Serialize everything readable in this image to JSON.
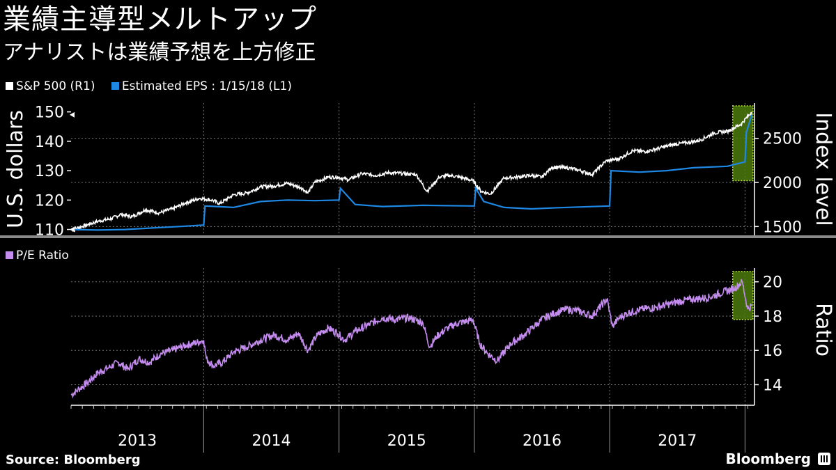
{
  "header": {
    "title": "業績主導型メルトアップ",
    "subtitle": "アナリストは業績予想を上方修正"
  },
  "footer": {
    "source": "Source: Bloomberg",
    "brand": "Bloomberg"
  },
  "colors": {
    "background": "#000000",
    "sp500": "#ffffff",
    "eps": "#1e88e5",
    "pe": "#c58cf0",
    "highlight_fill": "#4d7a0e",
    "highlight_border": "#b7e33a"
  },
  "chart_data": [
    {
      "type": "line",
      "panel": "top",
      "left_axis": {
        "label": "U.S. dollars",
        "ticks": [
          110,
          120,
          130,
          140,
          150
        ],
        "ylim": [
          108,
          153
        ]
      },
      "right_axis": {
        "label": "Index level",
        "ticks": [
          1500,
          2000,
          2500
        ],
        "ylim": [
          1400,
          2900
        ]
      },
      "legend": {
        "placement": "top-left",
        "entries": [
          "S&P 500 (R1)",
          "Estimated EPS : 1/15/18 (L1)"
        ]
      },
      "x_range": [
        2013.0,
        2018.05
      ],
      "series": [
        {
          "name": "S&P 500 (R1)",
          "axis": "right",
          "x": [
            2013.0,
            2013.08,
            2013.2,
            2013.3,
            2013.37,
            2013.45,
            2013.55,
            2013.65,
            2013.75,
            2013.85,
            2013.95,
            2014.04,
            2014.1,
            2014.2,
            2014.3,
            2014.4,
            2014.5,
            2014.6,
            2014.7,
            2014.75,
            2014.8,
            2014.9,
            2014.97,
            2015.05,
            2015.15,
            2015.25,
            2015.35,
            2015.45,
            2015.55,
            2015.63,
            2015.65,
            2015.72,
            2015.8,
            2015.9,
            2015.97,
            2016.03,
            2016.1,
            2016.2,
            2016.3,
            2016.4,
            2016.48,
            2016.55,
            2016.65,
            2016.75,
            2016.85,
            2016.95,
            2017.05,
            2017.15,
            2017.25,
            2017.35,
            2017.45,
            2017.55,
            2017.65,
            2017.75,
            2017.85,
            2017.95,
            2018.03
          ],
          "values": [
            1460,
            1500,
            1560,
            1590,
            1640,
            1610,
            1690,
            1655,
            1700,
            1770,
            1820,
            1800,
            1760,
            1860,
            1880,
            1950,
            1960,
            1990,
            1940,
            1880,
            2000,
            2060,
            2060,
            2030,
            2100,
            2080,
            2110,
            2100,
            2090,
            1900,
            1930,
            2060,
            2080,
            2050,
            2020,
            1900,
            1870,
            2050,
            2060,
            2080,
            2060,
            2170,
            2170,
            2140,
            2090,
            2240,
            2270,
            2360,
            2350,
            2390,
            2430,
            2450,
            2480,
            2560,
            2580,
            2660,
            2800
          ]
        },
        {
          "name": "Estimated EPS : 1/15/18 (L1)",
          "axis": "left",
          "x": [
            2013.0,
            2013.2,
            2013.4,
            2013.6,
            2013.8,
            2013.98,
            2013.99,
            2014.2,
            2014.4,
            2014.6,
            2014.8,
            2014.98,
            2014.99,
            2015.1,
            2015.3,
            2015.6,
            2015.98,
            2015.99,
            2016.05,
            2016.2,
            2016.4,
            2016.6,
            2016.98,
            2016.99,
            2017.2,
            2017.4,
            2017.6,
            2017.85,
            2017.98,
            2017.99,
            2018.03
          ],
          "values": [
            110,
            109.8,
            110,
            110.5,
            111,
            111.5,
            118,
            117.5,
            119.5,
            120,
            119.8,
            120,
            124,
            118.5,
            117.8,
            118.2,
            118,
            124,
            119.5,
            117.5,
            117,
            117.4,
            118,
            130,
            129.5,
            130,
            131,
            131.5,
            133,
            143,
            149
          ]
        }
      ],
      "annotations": [
        {
          "type": "highlight-box",
          "x": [
            2017.92,
            2018.08
          ]
        }
      ]
    },
    {
      "type": "line",
      "panel": "bottom",
      "right_axis": {
        "label": "Ratio",
        "ticks": [
          14,
          16,
          18,
          20
        ],
        "ylim": [
          12.8,
          20.8
        ]
      },
      "legend": {
        "placement": "top-left",
        "entries": [
          "P/E Ratio"
        ]
      },
      "x_range": [
        2013.0,
        2018.05
      ],
      "x_tick_labels": [
        "2013",
        "2014",
        "2015",
        "2016",
        "2017"
      ],
      "series": [
        {
          "name": "P/E Ratio",
          "axis": "right",
          "x": [
            2013.0,
            2013.05,
            2013.12,
            2013.2,
            2013.28,
            2013.35,
            2013.42,
            2013.5,
            2013.58,
            2013.66,
            2013.75,
            2013.85,
            2013.95,
            2013.98,
            2014.0,
            2014.05,
            2014.12,
            2014.2,
            2014.3,
            2014.4,
            2014.5,
            2014.6,
            2014.68,
            2014.75,
            2014.82,
            2014.9,
            2014.97,
            2015.02,
            2015.1,
            2015.2,
            2015.3,
            2015.4,
            2015.5,
            2015.6,
            2015.65,
            2015.7,
            2015.78,
            2015.86,
            2015.93,
            2015.97,
            2016.02,
            2016.08,
            2016.15,
            2016.25,
            2016.35,
            2016.45,
            2016.5,
            2016.58,
            2016.66,
            2016.75,
            2016.85,
            2016.96,
            2017.0,
            2017.05,
            2017.12,
            2017.22,
            2017.32,
            2017.42,
            2017.52,
            2017.62,
            2017.72,
            2017.82,
            2017.9,
            2017.96,
            2018.0,
            2018.03
          ],
          "values": [
            13.4,
            13.7,
            14.1,
            14.7,
            15.0,
            15.3,
            14.9,
            15.5,
            15.3,
            15.8,
            16.0,
            16.3,
            16.5,
            16.6,
            15.5,
            15.1,
            15.3,
            15.9,
            16.2,
            16.6,
            16.9,
            16.6,
            17.0,
            16.0,
            16.9,
            17.3,
            17.0,
            16.6,
            17.1,
            17.5,
            17.9,
            17.8,
            17.9,
            17.6,
            16.2,
            16.8,
            17.3,
            17.6,
            17.7,
            17.8,
            16.4,
            15.8,
            15.4,
            16.4,
            16.9,
            17.6,
            17.9,
            18.2,
            18.4,
            18.3,
            18.0,
            19.0,
            17.4,
            17.9,
            18.2,
            18.4,
            18.5,
            18.7,
            18.9,
            19.0,
            19.1,
            19.4,
            19.6,
            20.0,
            18.4,
            18.6
          ]
        }
      ],
      "annotations": [
        {
          "type": "highlight-box",
          "x": [
            2017.92,
            2018.08
          ]
        }
      ]
    }
  ]
}
